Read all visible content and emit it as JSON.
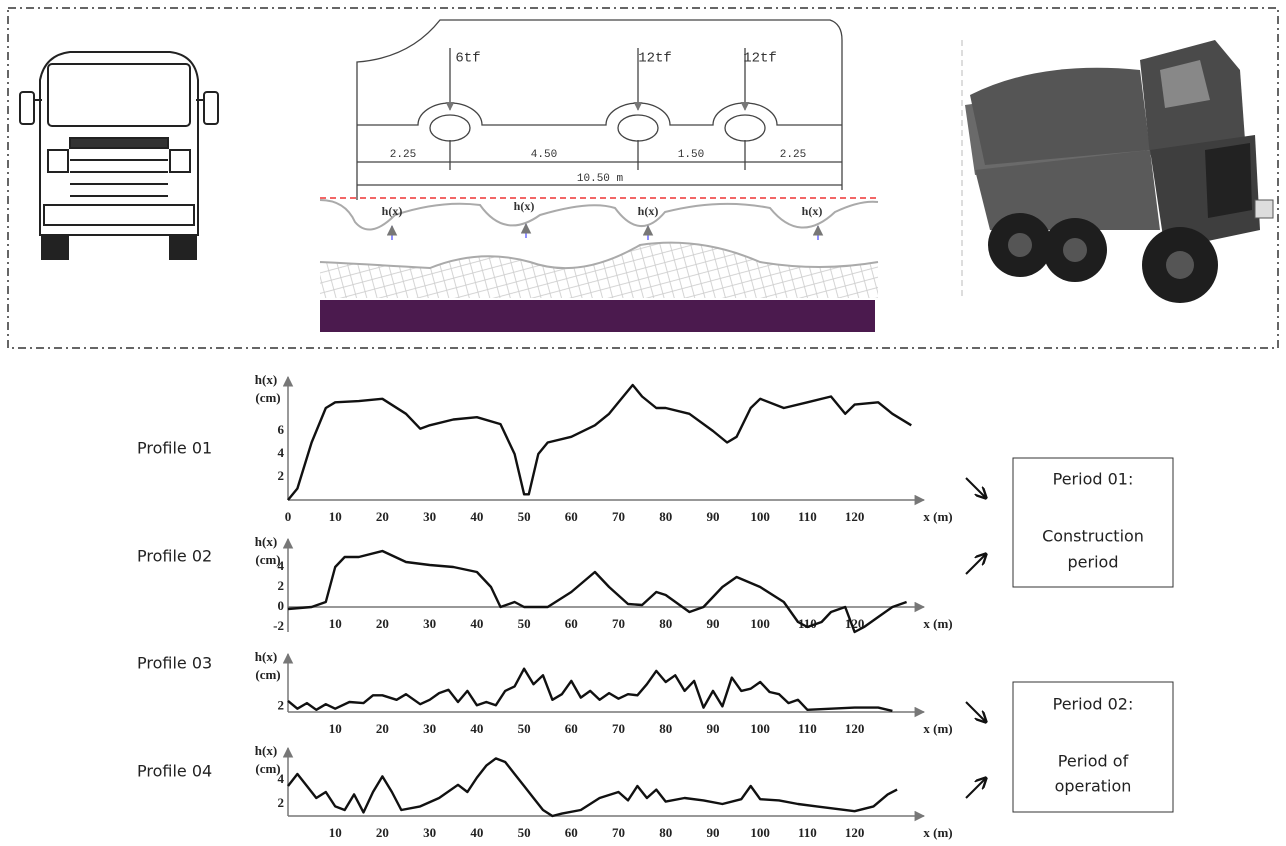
{
  "diagram": {
    "loads": [
      "6tf",
      "12tf",
      "12tf"
    ],
    "spacings": [
      "2.25",
      "4.50",
      "1.50",
      "2.25"
    ],
    "total": "10.50 m",
    "profile_labels": [
      "h(x)",
      "h(x)",
      "h(x)",
      "h(x)"
    ]
  },
  "profiles": [
    {
      "label": "Profile 01",
      "y_label": "h(x)",
      "y_unit": "(cm)",
      "x_label": "x (m)",
      "xlim": [
        0,
        133
      ],
      "ylim": [
        0,
        10
      ],
      "yticks": [
        2,
        4,
        6
      ],
      "xticks": [
        0,
        10,
        20,
        30,
        40,
        50,
        60,
        70,
        80,
        90,
        100,
        110,
        120
      ],
      "x": [
        0,
        2,
        5,
        8,
        10,
        15,
        20,
        25,
        28,
        30,
        35,
        40,
        45,
        48,
        50,
        51,
        53,
        55,
        60,
        65,
        68,
        70,
        73,
        75,
        78,
        80,
        85,
        90,
        93,
        95,
        98,
        100,
        105,
        110,
        115,
        118,
        120,
        125,
        128,
        132
      ],
      "values": [
        0,
        1,
        5,
        8,
        8.5,
        8.6,
        8.8,
        7.5,
        6.2,
        6.5,
        7,
        7.2,
        6.6,
        4,
        0.5,
        0.5,
        4,
        5,
        5.5,
        6.5,
        7.5,
        8.5,
        10,
        9,
        8,
        8,
        7.5,
        6,
        5,
        5.5,
        8,
        8.8,
        8,
        8.5,
        9,
        7.5,
        8.3,
        8.5,
        7.5,
        6.5
      ]
    },
    {
      "label": "Profile 02",
      "y_label": "h(x)",
      "y_unit": "(cm)",
      "x_label": "x (m)",
      "xlim": [
        0,
        133
      ],
      "ylim": [
        -2.5,
        6
      ],
      "yticks": [
        -2,
        0,
        2,
        4
      ],
      "xticks": [
        10,
        20,
        30,
        40,
        50,
        60,
        70,
        80,
        90,
        100,
        110,
        120
      ],
      "x": [
        0,
        5,
        8,
        10,
        12,
        15,
        20,
        25,
        30,
        35,
        40,
        43,
        45,
        48,
        50,
        55,
        60,
        65,
        68,
        72,
        75,
        78,
        80,
        85,
        88,
        92,
        95,
        100,
        105,
        108,
        110,
        113,
        115,
        118,
        120,
        122,
        125,
        128,
        131
      ],
      "values": [
        -0.2,
        0,
        0.5,
        4,
        5,
        5,
        5.6,
        4.5,
        4.2,
        4,
        3.5,
        2,
        0,
        0.5,
        0,
        0,
        1.5,
        3.5,
        2,
        0.3,
        0.2,
        1.5,
        1.2,
        -0.5,
        0,
        2,
        3,
        2,
        0.5,
        -1.5,
        -2,
        -1.5,
        -0.5,
        0,
        -2.5,
        -2,
        -1,
        0,
        0.5
      ]
    },
    {
      "label": "Profile 03",
      "y_label": "h(x)",
      "y_unit": "(cm)",
      "x_label": "x (m)",
      "xlim": [
        0,
        133
      ],
      "ylim": [
        1.5,
        6
      ],
      "yticks": [
        2
      ],
      "xticks": [
        10,
        20,
        30,
        40,
        50,
        60,
        70,
        80,
        90,
        100,
        110,
        120
      ],
      "x": [
        0,
        2,
        4,
        6,
        8,
        10,
        13,
        16,
        18,
        20,
        23,
        25,
        28,
        30,
        32,
        34,
        36,
        38,
        40,
        42,
        44,
        46,
        48,
        50,
        52,
        54,
        56,
        58,
        60,
        62,
        64,
        66,
        68,
        70,
        72,
        74,
        76,
        78,
        80,
        82,
        84,
        86,
        88,
        90,
        92,
        94,
        96,
        98,
        100,
        102,
        104,
        106,
        108,
        110,
        115,
        120,
        125,
        128
      ],
      "values": [
        2.5,
        1.8,
        2.3,
        1.7,
        2.2,
        1.8,
        2.4,
        2.3,
        3,
        3,
        2.6,
        3.1,
        2.2,
        2.6,
        3.2,
        3.5,
        2.4,
        3.4,
        2.1,
        2.4,
        2.1,
        3.4,
        3.8,
        5.4,
        4,
        4.8,
        2.6,
        3.1,
        4.3,
        2.8,
        3.4,
        2.6,
        3.2,
        2.7,
        3.1,
        3,
        4,
        5.2,
        4.2,
        4.8,
        3.4,
        4.3,
        1.9,
        3.4,
        2,
        4.6,
        3.4,
        3.6,
        4.2,
        3.3,
        3.1,
        2.3,
        2.6,
        1.7,
        1.8,
        1.9,
        1.9,
        1.6
      ]
    },
    {
      "label": "Profile 04",
      "y_label": "h(x)",
      "y_unit": "(cm)",
      "x_label": "x (m)",
      "xlim": [
        0,
        133
      ],
      "ylim": [
        1,
        6
      ],
      "yticks": [
        2,
        4
      ],
      "xticks": [
        10,
        20,
        30,
        40,
        50,
        60,
        70,
        80,
        90,
        100,
        110,
        120
      ],
      "x": [
        0,
        2,
        4,
        6,
        8,
        10,
        12,
        14,
        16,
        18,
        20,
        22,
        24,
        28,
        32,
        36,
        38,
        40,
        42,
        44,
        46,
        48,
        50,
        52,
        54,
        56,
        58,
        62,
        66,
        70,
        72,
        74,
        76,
        78,
        80,
        84,
        88,
        92,
        96,
        98,
        100,
        104,
        108,
        112,
        116,
        120,
        124,
        127,
        129
      ],
      "values": [
        3.5,
        4.5,
        3.5,
        2.5,
        3,
        1.8,
        1.5,
        2.8,
        1.3,
        3,
        4.3,
        3,
        1.5,
        1.8,
        2.5,
        3.6,
        3,
        4.2,
        5.2,
        5.8,
        5.5,
        4.5,
        3.5,
        2.5,
        1.5,
        1,
        1.2,
        1.5,
        2.5,
        3,
        2.3,
        3.5,
        2.5,
        3.2,
        2.2,
        2.5,
        2.3,
        2,
        2.4,
        3.5,
        2.4,
        2.3,
        2,
        1.8,
        1.6,
        1.4,
        1.8,
        2.8,
        3.2
      ]
    }
  ],
  "periods": [
    {
      "title": "Period 01:",
      "lines": [
        "Construction",
        "period"
      ]
    },
    {
      "title": "Period 02:",
      "lines": [
        "Period of",
        "operation"
      ]
    }
  ]
}
